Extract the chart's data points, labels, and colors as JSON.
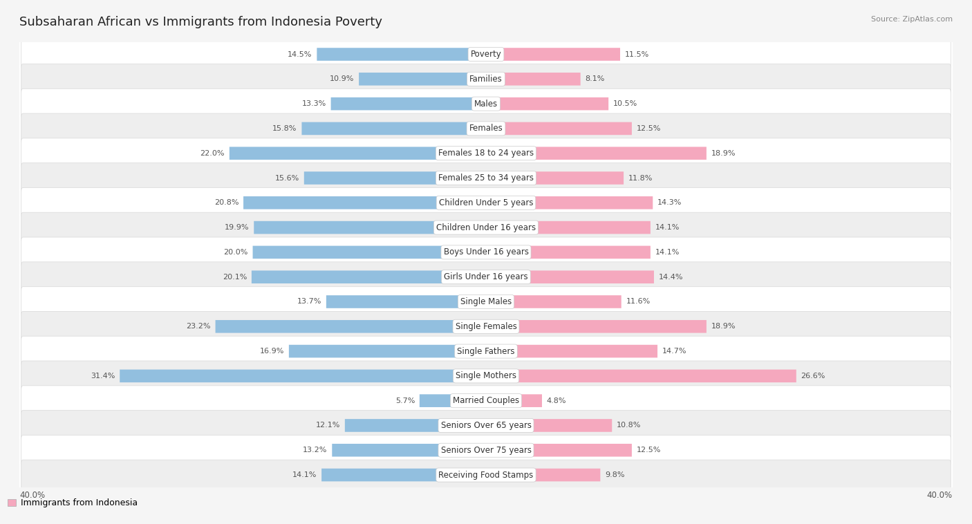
{
  "title": "Subsaharan African vs Immigrants from Indonesia Poverty",
  "source": "Source: ZipAtlas.com",
  "categories": [
    "Poverty",
    "Families",
    "Males",
    "Females",
    "Females 18 to 24 years",
    "Females 25 to 34 years",
    "Children Under 5 years",
    "Children Under 16 years",
    "Boys Under 16 years",
    "Girls Under 16 years",
    "Single Males",
    "Single Females",
    "Single Fathers",
    "Single Mothers",
    "Married Couples",
    "Seniors Over 65 years",
    "Seniors Over 75 years",
    "Receiving Food Stamps"
  ],
  "left_values": [
    14.5,
    10.9,
    13.3,
    15.8,
    22.0,
    15.6,
    20.8,
    19.9,
    20.0,
    20.1,
    13.7,
    23.2,
    16.9,
    31.4,
    5.7,
    12.1,
    13.2,
    14.1
  ],
  "right_values": [
    11.5,
    8.1,
    10.5,
    12.5,
    18.9,
    11.8,
    14.3,
    14.1,
    14.1,
    14.4,
    11.6,
    18.9,
    14.7,
    26.6,
    4.8,
    10.8,
    12.5,
    9.8
  ],
  "left_color": "#92bfdf",
  "right_color": "#f5a8be",
  "row_light": "#ffffff",
  "row_dark": "#eeeeee",
  "row_border": "#dddddd",
  "axis_max": 40.0,
  "legend_left": "Subsaharan African",
  "legend_right": "Immigrants from Indonesia",
  "title_fontsize": 13,
  "cat_fontsize": 8.5,
  "val_fontsize": 8.0
}
